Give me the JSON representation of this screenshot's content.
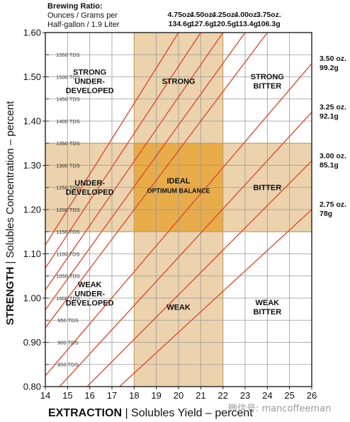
{
  "header": {
    "brewing_ratio_title": "Brewing Ratio:",
    "brewing_ratio_line1": "Ounces / Grams per",
    "brewing_ratio_line2": "Half-gallon / 1.9 Liter"
  },
  "watermark": "微信号: mancoffeeman",
  "colors": {
    "ideal_zone": "#e8ac4b",
    "band_zone": "#ecd3ae",
    "ratio_line": "#d9472a",
    "grid": "#999999",
    "frame": "#222222"
  },
  "chart_data": {
    "type": "line",
    "xlabel_bold": "EXTRACTION",
    "xlabel_rest": "Solubles Yield – percent",
    "ylabel_bold": "STRENGTH",
    "ylabel_rest": "Solubles Concentration – percent",
    "xlim": [
      14,
      26
    ],
    "ylim": [
      0.8,
      1.6
    ],
    "x_ticks": [
      "14",
      "15",
      "16",
      "17",
      "18",
      "19",
      "20",
      "21",
      "22",
      "23",
      "24",
      "25",
      "26"
    ],
    "y_ticks": [
      "0.80",
      "0.90",
      "1.00",
      "1.10",
      "1.20",
      "1.30",
      "1.40",
      "1.50",
      "1.60"
    ],
    "tds_ticks": [
      {
        "label": "850 TDS",
        "y": 0.85
      },
      {
        "label": "900 TDS",
        "y": 0.9
      },
      {
        "label": "950 TDS",
        "y": 0.95
      },
      {
        "label": "1000 TDS",
        "y": 1.0
      },
      {
        "label": "1050 TDS",
        "y": 1.05
      },
      {
        "label": "1100 TDS",
        "y": 1.1
      },
      {
        "label": "1150 TDS",
        "y": 1.15
      },
      {
        "label": "1200 TDS",
        "y": 1.2
      },
      {
        "label": "1250 TDS",
        "y": 1.25
      },
      {
        "label": "1300 TDS",
        "y": 1.3
      },
      {
        "label": "1350 TDS",
        "y": 1.35
      },
      {
        "label": "1400 TDS",
        "y": 1.4
      },
      {
        "label": "1450 TDS",
        "y": 1.45
      },
      {
        "label": "1500 TDS",
        "y": 1.5
      },
      {
        "label": "1550 TDS",
        "y": 1.55
      }
    ],
    "zones": {
      "x_band": [
        18,
        22
      ],
      "y_band": [
        1.15,
        1.35
      ]
    },
    "regions": [
      {
        "lines": [
          "STRONG",
          "UNDER-",
          "DEVELOPED"
        ],
        "x": 16,
        "y": 1.49
      },
      {
        "lines": [
          "STRONG"
        ],
        "x": 20,
        "y": 1.49
      },
      {
        "lines": [
          "STRONG",
          "BITTER"
        ],
        "x": 24,
        "y": 1.49
      },
      {
        "lines": [
          "UNDER-",
          "DEVELOPED"
        ],
        "x": 16,
        "y": 1.25
      },
      {
        "lines": [
          "IDEAL"
        ],
        "x": 20,
        "y": 1.265
      },
      {
        "lines": [
          "OPTIMUM BALANCE"
        ],
        "x": 20,
        "y": 1.243,
        "small": true
      },
      {
        "lines": [
          "BITTER"
        ],
        "x": 24,
        "y": 1.25
      },
      {
        "lines": [
          "WEAK",
          "UNDER-",
          "DEVELOPED"
        ],
        "x": 16,
        "y": 1.01
      },
      {
        "lines": [
          "WEAK"
        ],
        "x": 20,
        "y": 0.98
      },
      {
        "lines": [
          "WEAK",
          "BITTER"
        ],
        "x": 24,
        "y": 0.98
      }
    ],
    "series": [
      {
        "top_line1": "4.75oz.",
        "top_line2": "134.6g",
        "x_at_top": 20.0,
        "slope": 0.08
      },
      {
        "top_line1": "4.50oz.",
        "top_line2": "127.6g",
        "x_at_top": 21.0,
        "slope": 0.076
      },
      {
        "top_line1": "4.25oz.",
        "top_line2": "120.5g",
        "x_at_top": 22.0,
        "slope": 0.0727
      },
      {
        "top_line1": "4.00oz.",
        "top_line2": "113.4g",
        "x_at_top": 23.0,
        "slope": 0.0696
      },
      {
        "top_line1": "3.75oz.",
        "top_line2": "106.3g",
        "x_at_top": 24.0,
        "slope": 0.0667
      },
      {
        "right_line1": "3.50 oz.",
        "right_line2": "99.2g",
        "y_at_right": 1.53,
        "slope": 0.0588
      },
      {
        "right_line1": "3.25 oz.",
        "right_line2": "92.1g",
        "y_at_right": 1.42,
        "slope": 0.0546
      },
      {
        "right_line1": "3.00 oz.",
        "right_line2": "85.1g",
        "y_at_right": 1.31,
        "slope": 0.0504
      },
      {
        "right_line1": "2.75 oz.",
        "right_line2": "78g",
        "y_at_right": 1.2,
        "slope": 0.0462
      }
    ]
  }
}
